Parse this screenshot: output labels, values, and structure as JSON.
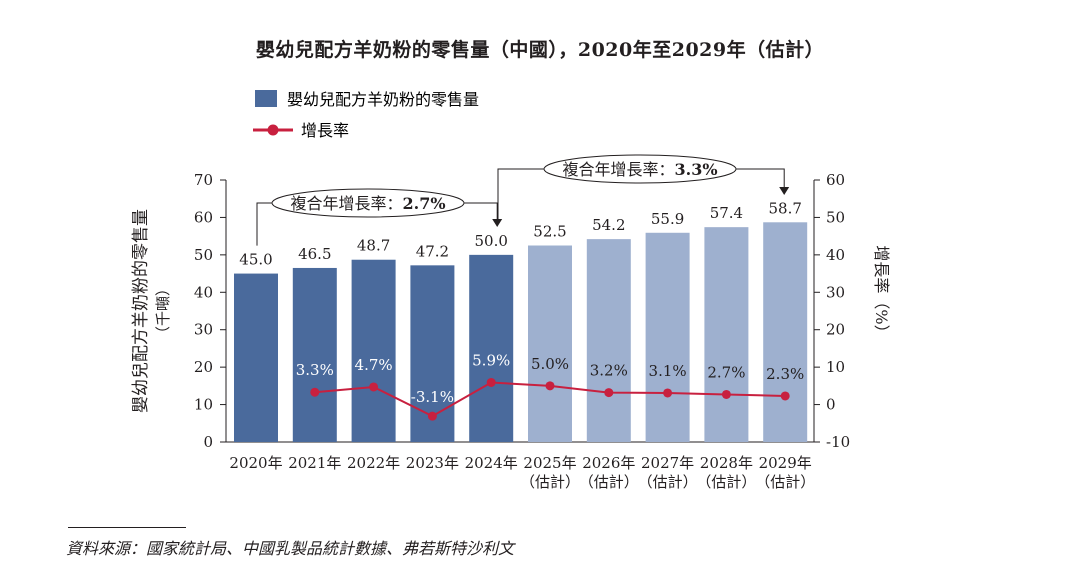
{
  "title": "嬰幼兒配方羊奶粉的零售量（中國），2020年至2029年（估計）",
  "source": "資料來源：國家統計局、中國乳製品統計數據、弗若斯特沙利文",
  "colors": {
    "actual_bar": "#4a6a9c",
    "estimate_bar": "#9eb0cf",
    "growth_line": "#c8203f",
    "axis": "#231f20"
  },
  "chart_data": {
    "type": "bar",
    "title": "嬰幼兒配方羊奶粉的零售量（中國），2020年至2029年（估計）",
    "categories": [
      "2020年",
      "2021年",
      "2022年",
      "2023年",
      "2024年",
      "2025年",
      "2026年",
      "2027年",
      "2028年",
      "2029年"
    ],
    "category_sublabels": [
      "",
      "",
      "",
      "",
      "",
      "（估計）",
      "（估計）",
      "（估計）",
      "（估計）",
      "（估計）"
    ],
    "estimated": [
      false,
      false,
      false,
      false,
      false,
      true,
      true,
      true,
      true,
      true
    ],
    "series": [
      {
        "name": "嬰幼兒配方羊奶粉的零售量",
        "type": "bar",
        "axis": "left",
        "values": [
          45.0,
          46.5,
          48.7,
          47.2,
          50.0,
          52.5,
          54.2,
          55.9,
          57.4,
          58.7
        ],
        "labels": [
          "45.0",
          "46.5",
          "48.7",
          "47.2",
          "50.0",
          "52.5",
          "54.2",
          "55.9",
          "57.4",
          "58.7"
        ]
      },
      {
        "name": "增長率",
        "type": "line",
        "axis": "right",
        "values": [
          null,
          3.3,
          4.7,
          -3.1,
          5.9,
          5.0,
          3.2,
          3.1,
          2.7,
          2.3
        ],
        "labels": [
          "",
          "3.3%",
          "4.7%",
          "-3.1%",
          "5.9%",
          "5.0%",
          "3.2%",
          "3.1%",
          "2.7%",
          "2.3%"
        ]
      }
    ],
    "ylabel": "嬰幼兒配方羊奶粉的零售量",
    "ylabel_unit": "（千噸）",
    "ylim": [
      0,
      70
    ],
    "yticks": [
      0,
      10,
      20,
      30,
      40,
      50,
      60,
      70
    ],
    "y2label": "增長率（%）",
    "y2lim": [
      -10,
      60
    ],
    "y2ticks": [
      -10,
      0,
      10,
      20,
      30,
      40,
      50,
      60
    ],
    "grid": false,
    "legend": {
      "placement": "top-left",
      "entries": [
        "嬰幼兒配方羊奶粉的零售量",
        "增長率"
      ]
    },
    "annotations": [
      {
        "text_label": "複合年增長率：",
        "text_value": "2.7%",
        "from": "2020年",
        "to": "2024年"
      },
      {
        "text_label": "複合年增長率：",
        "text_value": "3.3%",
        "from": "2024年",
        "to": "2029年"
      }
    ]
  }
}
